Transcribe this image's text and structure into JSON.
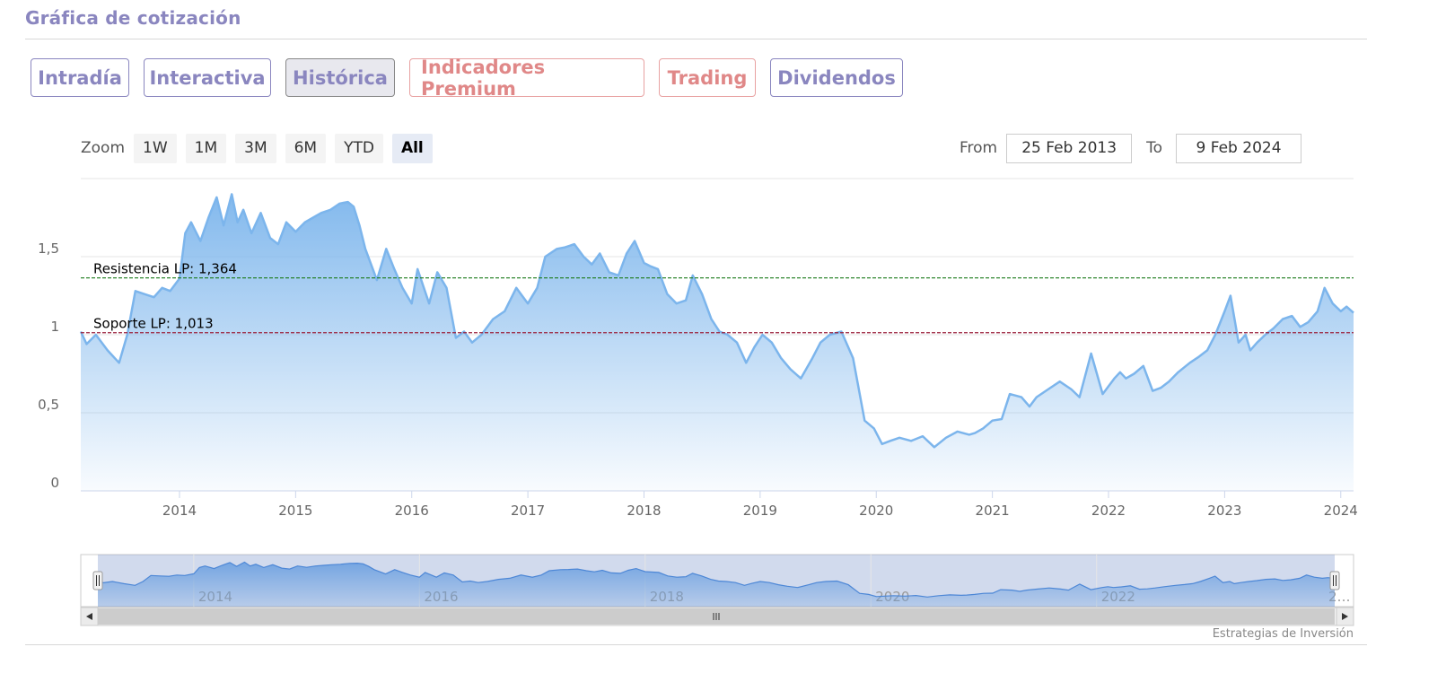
{
  "header": {
    "title": "Gráfica de cotización"
  },
  "tabs": [
    {
      "label": "Intradía",
      "state": "normal"
    },
    {
      "label": "Interactiva",
      "state": "normal"
    },
    {
      "label": "Histórica",
      "state": "active"
    },
    {
      "label": "Indicadores Premium",
      "state": "premium"
    },
    {
      "label": "Trading",
      "state": "premium"
    },
    {
      "label": "Dividendos",
      "state": "normal"
    }
  ],
  "zoom": {
    "label": "Zoom",
    "buttons": [
      "1W",
      "1M",
      "3M",
      "6M",
      "YTD",
      "All"
    ],
    "selected": "All"
  },
  "range": {
    "from_label": "From",
    "from_value": "25 Feb 2013",
    "to_label": "To",
    "to_value": "9 Feb 2024"
  },
  "credits": "Estrategias de Inversión",
  "colors": {
    "accent": "#8a86bf",
    "premium": "#e08888",
    "series": "#7cb5ec",
    "resistance": "#1a7a1a",
    "support": "#9a1f3a"
  },
  "chart_data": {
    "type": "area",
    "title": "",
    "xlabel": "",
    "ylabel": "",
    "ylim": [
      0,
      2
    ],
    "xlim": [
      2013.15,
      2024.11
    ],
    "yticks": [
      0,
      0.5,
      1,
      1.5
    ],
    "ytick_labels": [
      "0",
      "0,5",
      "1",
      "1,5"
    ],
    "xticks": [
      2014,
      2015,
      2016,
      2017,
      2018,
      2019,
      2020,
      2021,
      2022,
      2023,
      2024
    ],
    "xtick_labels": [
      "2014",
      "2015",
      "2016",
      "2017",
      "2018",
      "2019",
      "2020",
      "2021",
      "2022",
      "2023",
      "2024"
    ],
    "grid": true,
    "series": [
      {
        "x": [
          2013.15,
          2013.2,
          2013.28,
          2013.38,
          2013.48,
          2013.55,
          2013.62,
          2013.7,
          2013.78,
          2013.85,
          2013.92,
          2014.0,
          2014.05,
          2014.1,
          2014.18,
          2014.25,
          2014.32,
          2014.38,
          2014.45,
          2014.5,
          2014.55,
          2014.62,
          2014.7,
          2014.78,
          2014.85,
          2014.92,
          2015.0,
          2015.08,
          2015.15,
          2015.22,
          2015.3,
          2015.38,
          2015.45,
          2015.5,
          2015.55,
          2015.6,
          2015.7,
          2015.78,
          2015.85,
          2015.92,
          2016.0,
          2016.05,
          2016.15,
          2016.22,
          2016.3,
          2016.38,
          2016.45,
          2016.52,
          2016.6,
          2016.7,
          2016.8,
          2016.9,
          2017.0,
          2017.08,
          2017.15,
          2017.25,
          2017.32,
          2017.4,
          2017.48,
          2017.55,
          2017.62,
          2017.7,
          2017.78,
          2017.85,
          2017.92,
          2018.0,
          2018.05,
          2018.12,
          2018.2,
          2018.28,
          2018.36,
          2018.42,
          2018.5,
          2018.58,
          2018.65,
          2018.72,
          2018.8,
          2018.88,
          2018.95,
          2019.02,
          2019.1,
          2019.18,
          2019.26,
          2019.35,
          2019.45,
          2019.52,
          2019.6,
          2019.7,
          2019.8,
          2019.9,
          2019.98,
          2020.05,
          2020.12,
          2020.2,
          2020.3,
          2020.4,
          2020.5,
          2020.6,
          2020.7,
          2020.8,
          2020.85,
          2020.92,
          2021.0,
          2021.08,
          2021.15,
          2021.25,
          2021.32,
          2021.38,
          2021.48,
          2021.58,
          2021.68,
          2021.75,
          2021.85,
          2021.95,
          2022.05,
          2022.1,
          2022.15,
          2022.22,
          2022.3,
          2022.38,
          2022.45,
          2022.52,
          2022.6,
          2022.7,
          2022.78,
          2022.85,
          2022.92,
          2023.0,
          2023.05,
          2023.12,
          2023.18,
          2023.22,
          2023.28,
          2023.35,
          2023.42,
          2023.5,
          2023.58,
          2023.65,
          2023.72,
          2023.8,
          2023.86,
          2023.93,
          2024.0,
          2024.05,
          2024.11
        ],
        "y": [
          1.02,
          0.94,
          1.0,
          0.9,
          0.82,
          1.0,
          1.28,
          1.26,
          1.24,
          1.3,
          1.28,
          1.36,
          1.65,
          1.72,
          1.6,
          1.75,
          1.88,
          1.7,
          1.9,
          1.72,
          1.8,
          1.65,
          1.78,
          1.62,
          1.58,
          1.72,
          1.66,
          1.72,
          1.75,
          1.78,
          1.8,
          1.84,
          1.85,
          1.82,
          1.7,
          1.55,
          1.35,
          1.55,
          1.42,
          1.3,
          1.2,
          1.42,
          1.2,
          1.4,
          1.3,
          0.98,
          1.02,
          0.95,
          1.0,
          1.1,
          1.15,
          1.3,
          1.2,
          1.3,
          1.5,
          1.55,
          1.56,
          1.58,
          1.5,
          1.45,
          1.52,
          1.4,
          1.38,
          1.52,
          1.6,
          1.46,
          1.44,
          1.42,
          1.26,
          1.2,
          1.22,
          1.38,
          1.26,
          1.1,
          1.02,
          1.0,
          0.95,
          0.82,
          0.92,
          1.0,
          0.95,
          0.85,
          0.78,
          0.72,
          0.85,
          0.95,
          1.0,
          1.02,
          0.85,
          0.45,
          0.4,
          0.3,
          0.32,
          0.34,
          0.32,
          0.35,
          0.28,
          0.34,
          0.38,
          0.36,
          0.37,
          0.4,
          0.45,
          0.46,
          0.62,
          0.6,
          0.54,
          0.6,
          0.65,
          0.7,
          0.65,
          0.6,
          0.88,
          0.62,
          0.72,
          0.76,
          0.72,
          0.75,
          0.8,
          0.64,
          0.66,
          0.7,
          0.76,
          0.82,
          0.86,
          0.9,
          1.0,
          1.15,
          1.25,
          0.95,
          1.0,
          0.9,
          0.95,
          1.0,
          1.04,
          1.1,
          1.12,
          1.05,
          1.08,
          1.15,
          1.3,
          1.2,
          1.15,
          1.18,
          1.14
        ]
      }
    ],
    "annotations": [
      {
        "label": "Resistencia LP: 1,364",
        "y": 1.364,
        "style": "dashed",
        "color": "#1a7a1a"
      },
      {
        "label": "Soporte LP: 1,013",
        "y": 1.013,
        "style": "dashed",
        "color": "#9a1f3a"
      }
    ],
    "navigator": {
      "xticks": [
        2014,
        2016,
        2018,
        2020,
        2022
      ],
      "xtick_labels": [
        "2014",
        "2016",
        "2018",
        "2020",
        "2022"
      ],
      "end_label": "2…"
    }
  }
}
